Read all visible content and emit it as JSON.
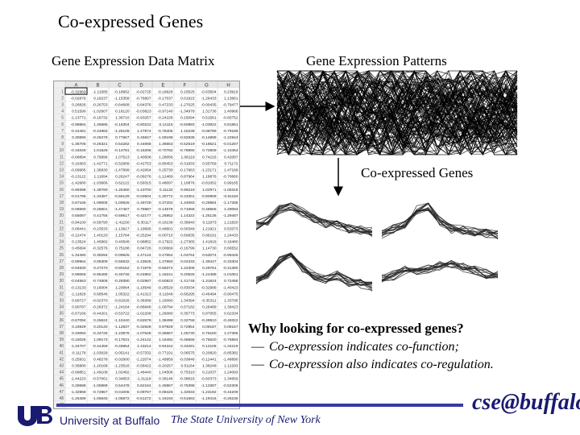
{
  "slide": {
    "title": "Co-expressed Genes",
    "matrix_label": "Gene Expression Data Matrix",
    "patterns_label": "Gene Expression Patterns",
    "coexpressed_label": "Co-expressed Genes"
  },
  "matrix": {
    "column_headers": [
      "A",
      "B",
      "C",
      "D",
      "E",
      "F",
      "G",
      "H"
    ],
    "first_row": [
      "-0.32969",
      "-1.11585",
      "-0.18952",
      "-0.02725",
      "-0.16828",
      "0.15525",
      "-0.63504",
      "0.23919"
    ]
  },
  "question": {
    "heading": "Why looking for co-expressed genes?",
    "bullets": [
      "Co-expression indicates co-function;",
      "Co-expression also indicates co-regulation."
    ]
  },
  "footer": {
    "university": "University at Buffalo",
    "suny": "The State University of New York",
    "logo_text": "cse@buffalo"
  }
}
